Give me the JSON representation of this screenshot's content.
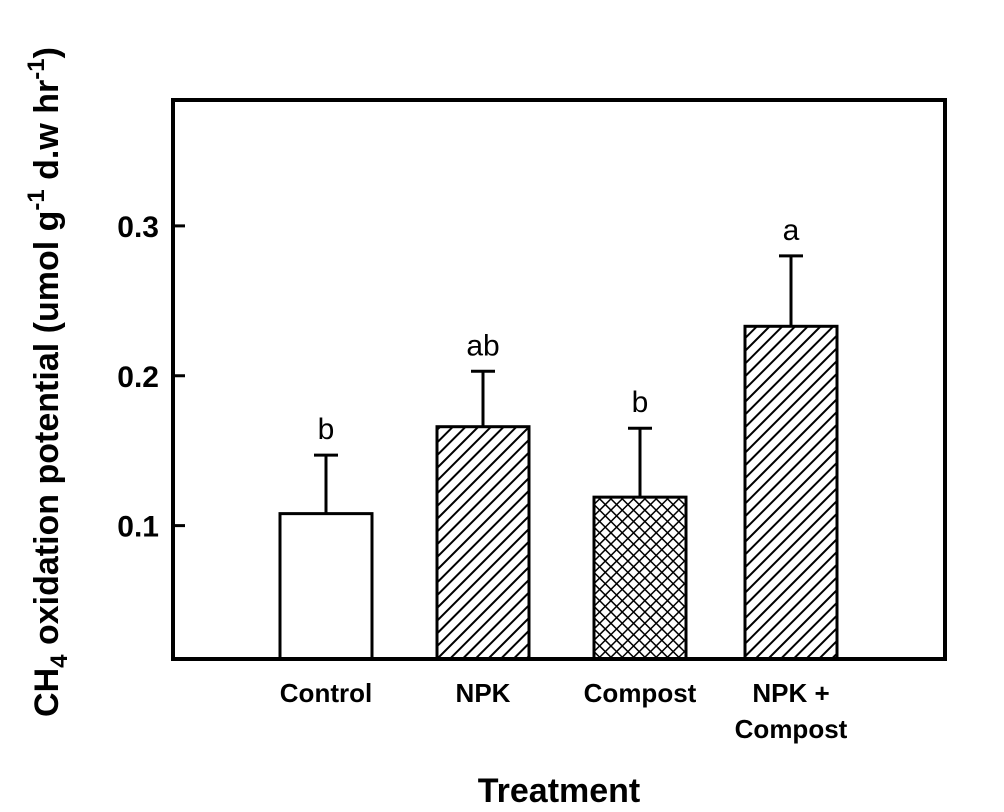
{
  "chart_data": {
    "type": "bar",
    "categories": [
      [
        "Control"
      ],
      [
        "NPK"
      ],
      [
        "Compost"
      ],
      [
        "NPK +",
        "Compost"
      ]
    ],
    "values": [
      0.108,
      0.166,
      0.119,
      0.233
    ],
    "errors": [
      0.039,
      0.037,
      0.046,
      0.047
    ],
    "significance_letters": [
      "b",
      "ab",
      "b",
      "a"
    ],
    "bar_fills": [
      "none",
      "diagonal-hatch",
      "cross-hatch",
      "diagonal-hatch"
    ],
    "xlabel": "Treatment",
    "ylabel": {
      "prefix": "CH",
      "subscript": "4",
      "text": " oxidation potential (umol g",
      "sup1": "-1",
      "text2": " d.w hr",
      "sup2": "-1",
      "suffix": ")"
    },
    "ylim": [
      0.011,
      0.384
    ],
    "yticks": [
      0.1,
      0.2,
      0.3
    ],
    "ytick_labels": [
      "0.1",
      "0.2",
      "0.3"
    ],
    "grid": false,
    "colors": {
      "axis": "#000000",
      "bar_stroke": "#000000",
      "bar_fill": "#ffffff"
    }
  }
}
